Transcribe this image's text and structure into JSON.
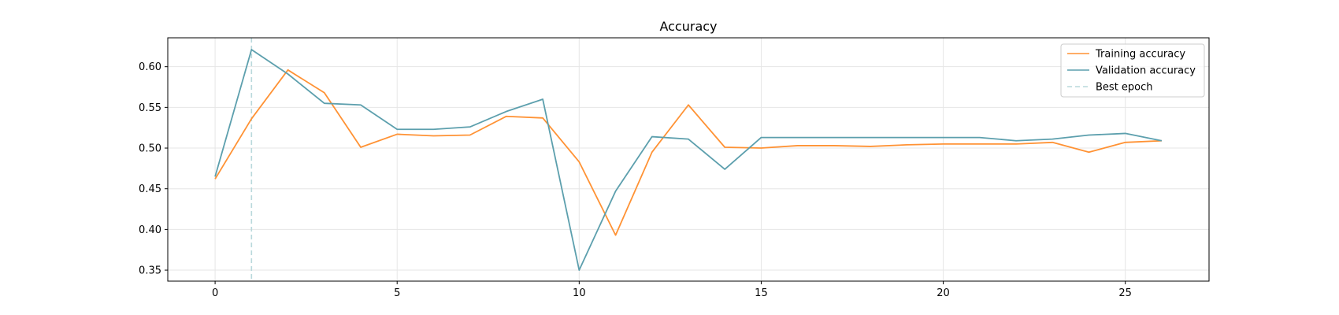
{
  "chart_data": {
    "type": "line",
    "title": "Accuracy",
    "xlabel": "",
    "ylabel": "",
    "xlim": [
      -1.3,
      27.3
    ],
    "ylim": [
      0.3365,
      0.6355
    ],
    "xticks": [
      0,
      5,
      10,
      15,
      20,
      25
    ],
    "xtick_labels": [
      "0",
      "5",
      "10",
      "15",
      "20",
      "25"
    ],
    "yticks": [
      0.35,
      0.4,
      0.45,
      0.5,
      0.55,
      0.6
    ],
    "ytick_labels": [
      "0.35",
      "0.40",
      "0.45",
      "0.50",
      "0.55",
      "0.60"
    ],
    "grid": true,
    "legend_position": "top-right",
    "x": [
      0,
      1,
      2,
      3,
      4,
      5,
      6,
      7,
      8,
      9,
      10,
      11,
      12,
      13,
      14,
      15,
      16,
      17,
      18,
      19,
      20,
      21,
      22,
      23,
      24,
      25,
      26
    ],
    "series": [
      {
        "name": "Training accuracy",
        "color": "#ff9234",
        "values": [
          0.462,
          0.536,
          0.596,
          0.568,
          0.501,
          0.517,
          0.515,
          0.516,
          0.539,
          0.537,
          0.483,
          0.393,
          0.495,
          0.553,
          0.501,
          0.5,
          0.503,
          0.503,
          0.502,
          0.504,
          0.505,
          0.505,
          0.505,
          0.507,
          0.495,
          0.507,
          0.509
        ]
      },
      {
        "name": "Validation accuracy",
        "color": "#5c9fad",
        "values": [
          0.465,
          0.621,
          0.591,
          0.555,
          0.553,
          0.523,
          0.523,
          0.526,
          0.545,
          0.56,
          0.35,
          0.447,
          0.514,
          0.511,
          0.474,
          0.513,
          0.513,
          0.513,
          0.513,
          0.513,
          0.513,
          0.513,
          0.509,
          0.511,
          0.516,
          0.518,
          0.509
        ]
      }
    ],
    "vlines": [
      {
        "name": "Best epoch",
        "x": 1,
        "color": "#b9d9dc",
        "style": "dashed"
      }
    ]
  }
}
